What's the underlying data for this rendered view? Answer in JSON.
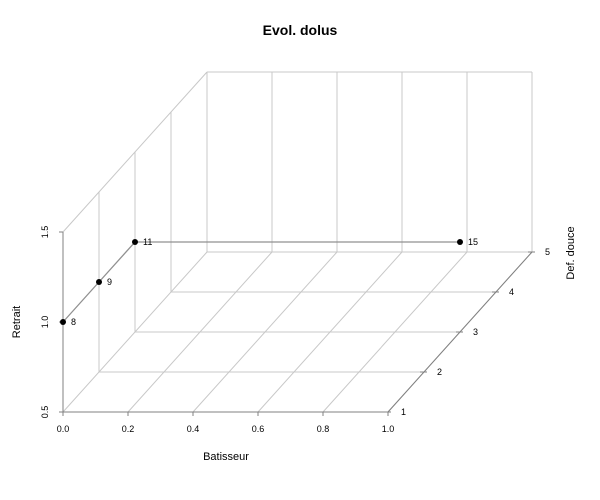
{
  "chart_data": {
    "type": "scatter3d",
    "title": "Evol. dolus",
    "xlabel": "Batisseur",
    "ylabel": "Def. douce",
    "zlabel": "Retrait",
    "xlim": [
      0.0,
      1.0
    ],
    "ylim": [
      1,
      5
    ],
    "zlim": [
      0.5,
      1.5
    ],
    "x_ticks": [
      "0.0",
      "0.2",
      "0.4",
      "0.6",
      "0.8",
      "1.0"
    ],
    "y_ticks": [
      "1",
      "2",
      "3",
      "4",
      "5"
    ],
    "z_ticks": [
      "0.5",
      "1.0",
      "1.5"
    ],
    "grid": true,
    "connect_points": true,
    "points": [
      {
        "label": "8",
        "x": 0.0,
        "y": 1,
        "z": 1.0
      },
      {
        "label": "9",
        "x": 0.0,
        "y": 2,
        "z": 1.0
      },
      {
        "label": "11",
        "x": 0.0,
        "y": 3,
        "z": 1.0
      },
      {
        "label": "15",
        "x": 1.0,
        "y": 3,
        "z": 1.0
      }
    ]
  }
}
